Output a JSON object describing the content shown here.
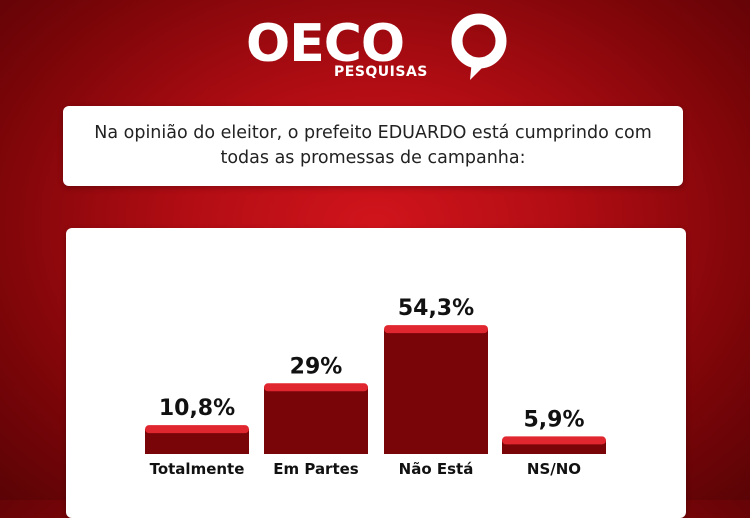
{
  "brand": {
    "name": "OECO",
    "subtitle": "PESQUISAS",
    "bubble_icon": "speech-bubble-icon"
  },
  "question": "Na opinião do eleitor, o prefeito EDUARDO está cumprindo com todas as promessas de campanha:",
  "colors": {
    "bar": "#7a0508",
    "bar_top": "#e0262e",
    "background": "#b30d14"
  },
  "chart_data": {
    "type": "bar",
    "categories": [
      "Totalmente",
      "Em Partes",
      "Não Está",
      "NS/NO"
    ],
    "values": [
      10.8,
      29,
      54.3,
      5.9
    ],
    "value_labels": [
      "10,8%",
      "29%",
      "54,3%",
      "5,9%"
    ],
    "ylim": [
      0,
      60
    ],
    "grid": false,
    "legend": "none"
  }
}
